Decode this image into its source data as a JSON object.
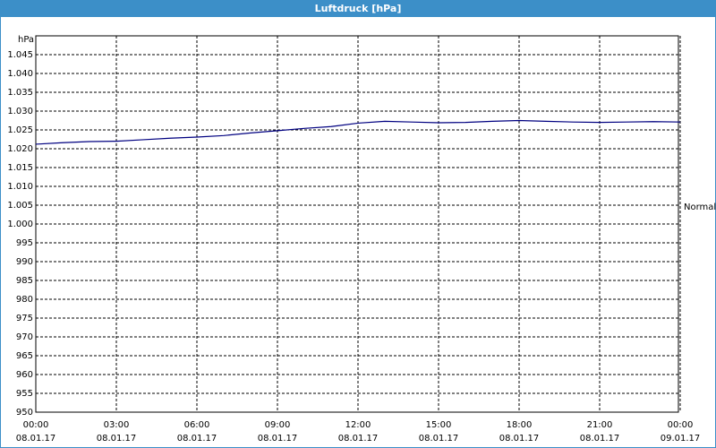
{
  "chart_data": {
    "type": "line",
    "title": "Luftdruck [hPa]",
    "y_label": "hPa",
    "annotation": "Normal",
    "x": [
      0,
      1,
      2,
      3,
      4,
      5,
      6,
      7,
      8,
      9,
      10,
      11,
      12,
      13,
      14,
      15,
      16,
      17,
      18,
      19,
      20,
      21,
      22,
      23,
      24
    ],
    "series": [
      {
        "name": "Luftdruck",
        "color": "#000080",
        "values": [
          1021.2,
          1021.6,
          1021.9,
          1022.0,
          1022.4,
          1022.8,
          1023.1,
          1023.5,
          1024.2,
          1024.8,
          1025.4,
          1025.9,
          1026.8,
          1027.3,
          1027.1,
          1026.9,
          1027.0,
          1027.3,
          1027.5,
          1027.3,
          1027.1,
          1027.0,
          1027.1,
          1027.2,
          1027.1
        ]
      }
    ],
    "xlim": [
      0,
      24
    ],
    "xticks": [
      {
        "value": 0,
        "label": [
          "00:00",
          "08.01.17"
        ]
      },
      {
        "value": 3,
        "label": [
          "03:00",
          "08.01.17"
        ]
      },
      {
        "value": 6,
        "label": [
          "06:00",
          "08.01.17"
        ]
      },
      {
        "value": 9,
        "label": [
          "09:00",
          "08.01.17"
        ]
      },
      {
        "value": 12,
        "label": [
          "12:00",
          "08.01.17"
        ]
      },
      {
        "value": 15,
        "label": [
          "15:00",
          "08.01.17"
        ]
      },
      {
        "value": 18,
        "label": [
          "18:00",
          "08.01.17"
        ]
      },
      {
        "value": 21,
        "label": [
          "21:00",
          "08.01.17"
        ]
      },
      {
        "value": 24,
        "label": [
          "00:00",
          "09.01.17"
        ]
      }
    ],
    "ylim": [
      950,
      1050
    ],
    "yticks": [
      950,
      955,
      960,
      965,
      970,
      975,
      980,
      985,
      990,
      995,
      {
        "value": 1000,
        "label": "1.000"
      },
      {
        "value": 1005,
        "label": "1.005"
      },
      {
        "value": 1010,
        "label": "1.010"
      },
      {
        "value": 1015,
        "label": "1.015"
      },
      {
        "value": 1020,
        "label": "1.020"
      },
      {
        "value": 1025,
        "label": "1.025"
      },
      {
        "value": 1030,
        "label": "1.030"
      },
      {
        "value": 1035,
        "label": "1.035"
      },
      {
        "value": 1040,
        "label": "1.040"
      },
      {
        "value": 1045,
        "label": "1.045"
      }
    ],
    "grid": true
  }
}
